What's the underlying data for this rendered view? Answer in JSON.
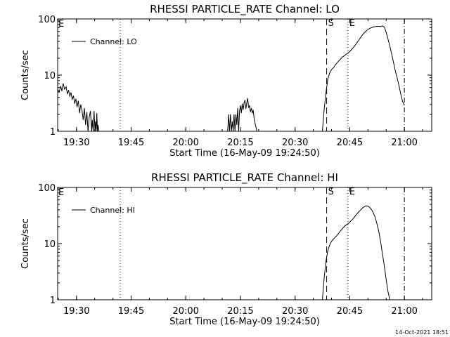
{
  "chart_data": [
    {
      "type": "line",
      "title": "RHESSI PARTICLE_RATE Channel: LO",
      "xlabel": "Start Time (16-May-09 19:24:50)",
      "ylabel": "Counts/sec",
      "yscale": "log",
      "ylim": [
        1,
        100
      ],
      "xlim": [
        "19:24:50",
        "21:07:30"
      ],
      "x_ticks": [
        "19:30",
        "19:45",
        "20:00",
        "20:15",
        "20:30",
        "20:45",
        "21:00"
      ],
      "y_ticks": [
        "1",
        "10",
        "100"
      ],
      "grid": false,
      "legend": {
        "placement": "top-left",
        "entries": [
          "Channel: LO"
        ]
      },
      "markers": [
        {
          "label": "",
          "time": "19:42:00",
          "style": "dotted"
        },
        {
          "label": "S",
          "time": "20:38:40",
          "style": "dashed"
        },
        {
          "label": "E",
          "time": "20:44:30",
          "style": "dotted"
        },
        {
          "label": "",
          "time": "21:00:00",
          "style": "dashdot"
        }
      ],
      "corner_label": "E",
      "series": [
        {
          "name": "Channel: LO",
          "segments": [
            {
              "x": [
                "19:24:50",
                "19:25:15",
                "19:25:40",
                "19:26:00",
                "19:26:20",
                "19:26:45",
                "19:27:10",
                "19:27:30",
                "19:27:50",
                "19:28:10",
                "19:28:30",
                "19:28:50",
                "19:29:10",
                "19:29:30",
                "19:29:50",
                "19:30:10",
                "19:30:30",
                "19:30:50",
                "19:31:10",
                "19:31:30",
                "19:31:50",
                "19:32:10",
                "19:32:30",
                "19:32:50",
                "19:33:10",
                "19:33:30",
                "19:33:50",
                "19:34:10",
                "19:34:20",
                "19:34:35",
                "19:34:50",
                "19:35:05",
                "19:35:15",
                "19:35:25",
                "19:35:35",
                "19:35:45",
                "19:35:55",
                "19:36:10",
                "19:36:20"
              ],
              "y": [
                5.6,
                5.0,
                6.4,
                5.2,
                7.1,
                5.6,
                6.2,
                4.6,
                5.4,
                4.2,
                4.9,
                3.7,
                4.3,
                3.1,
                3.8,
                2.7,
                3.5,
                2.1,
                3.0,
                2.4,
                1.6,
                2.6,
                1.3,
                2.2,
                1.0,
                1.8,
                2.3,
                1.0,
                1.6,
                1.0,
                2.3,
                1.0,
                1.5,
                1.0,
                2.1,
                1.0,
                1.3,
                1.0,
                1.0
              ]
            },
            {
              "x": [
                "20:11:30",
                "20:11:45",
                "20:12:00",
                "20:12:15",
                "20:12:30",
                "20:12:45",
                "20:13:00",
                "20:13:15",
                "20:13:30",
                "20:13:45",
                "20:14:00",
                "20:14:15",
                "20:14:30",
                "20:14:45",
                "20:15:00",
                "20:15:15",
                "20:15:30",
                "20:15:45",
                "20:16:00",
                "20:16:15",
                "20:16:30",
                "20:16:45",
                "20:17:00",
                "20:17:15",
                "20:17:30",
                "20:17:45",
                "20:18:00",
                "20:18:15",
                "20:18:30",
                "20:18:45",
                "20:19:00",
                "20:19:15",
                "20:19:30"
              ],
              "y": [
                1.0,
                2.0,
                1.0,
                2.0,
                1.0,
                1.5,
                1.0,
                2.0,
                1.0,
                2.0,
                1.3,
                2.6,
                1.0,
                2.3,
                2.9,
                2.1,
                3.1,
                2.4,
                3.2,
                3.6,
                2.5,
                3.2,
                3.9,
                2.6,
                2.9,
                2.2,
                2.6,
                2.1,
                2.4,
                1.7,
                1.4,
                1.2,
                1.0
              ]
            },
            {
              "x": [
                "20:37:30",
                "20:38:00",
                "20:38:30",
                "20:39:00",
                "20:39:30",
                "20:40:00",
                "20:40:30",
                "20:41:00",
                "20:41:30",
                "20:42:00",
                "20:42:30",
                "20:43:00",
                "20:43:30",
                "20:44:00",
                "20:44:30",
                "20:45:00",
                "20:45:30",
                "20:46:00",
                "20:46:30",
                "20:47:00",
                "20:47:30",
                "20:48:00",
                "20:48:30",
                "20:49:00",
                "20:49:30",
                "20:50:00",
                "20:50:30",
                "20:51:00",
                "20:51:30",
                "20:52:00",
                "20:52:30",
                "20:53:00",
                "20:53:30",
                "20:54:00",
                "20:54:30",
                "20:55:00",
                "20:55:30",
                "20:56:00",
                "20:56:30",
                "20:57:00",
                "20:57:30",
                "20:58:00",
                "20:58:30",
                "20:59:00",
                "20:59:30",
                "21:00:00"
              ],
              "y": [
                1.0,
                2.5,
                5.0,
                8.5,
                11,
                12.5,
                13.5,
                15,
                16.5,
                18,
                19.5,
                21,
                22,
                23.5,
                24.5,
                26.5,
                28.5,
                31,
                34,
                38,
                42,
                47,
                52,
                57,
                61,
                65,
                68,
                70,
                72,
                73,
                74,
                74,
                73,
                75,
                72,
                58,
                44,
                33,
                24,
                17,
                12,
                9,
                6.5,
                4.6,
                3.4,
                2.9
              ]
            }
          ]
        }
      ]
    },
    {
      "type": "line",
      "title": "RHESSI PARTICLE_RATE Channel: HI",
      "xlabel": "Start Time (16-May-09 19:24:50)",
      "ylabel": "Counts/sec",
      "yscale": "log",
      "ylim": [
        1,
        100
      ],
      "xlim": [
        "19:24:50",
        "21:07:30"
      ],
      "x_ticks": [
        "19:30",
        "19:45",
        "20:00",
        "20:15",
        "20:30",
        "20:45",
        "21:00"
      ],
      "y_ticks": [
        "1",
        "10",
        "100"
      ],
      "grid": false,
      "legend": {
        "placement": "top-left",
        "entries": [
          "Channel: HI"
        ]
      },
      "markers": [
        {
          "label": "",
          "time": "19:42:00",
          "style": "dotted"
        },
        {
          "label": "S",
          "time": "20:38:40",
          "style": "dashed"
        },
        {
          "label": "E",
          "time": "20:44:30",
          "style": "dotted"
        },
        {
          "label": "",
          "time": "21:00:00",
          "style": "dashdot"
        }
      ],
      "corner_label": "E",
      "series": [
        {
          "name": "Channel: HI",
          "segments": [
            {
              "x": [
                "20:37:30",
                "20:38:00",
                "20:38:30",
                "20:39:00",
                "20:39:30",
                "20:40:00",
                "20:40:30",
                "20:41:00",
                "20:41:30",
                "20:42:00",
                "20:42:30",
                "20:43:00",
                "20:43:30",
                "20:44:00",
                "20:44:30",
                "20:45:00",
                "20:45:30",
                "20:46:00",
                "20:46:30",
                "20:47:00",
                "20:47:30",
                "20:48:00",
                "20:48:30",
                "20:49:00",
                "20:49:30",
                "20:50:00",
                "20:50:30",
                "20:51:00",
                "20:51:30",
                "20:52:00",
                "20:52:30",
                "20:53:00",
                "20:53:30",
                "20:54:00",
                "20:54:30",
                "20:55:00",
                "20:55:30",
                "20:56:00"
              ],
              "y": [
                1.0,
                2.5,
                5.0,
                7.5,
                9.5,
                11,
                12,
                13,
                14,
                15.5,
                17,
                18.5,
                20,
                21.5,
                22.5,
                24,
                26,
                28,
                31,
                34,
                37,
                40,
                43,
                45.5,
                47,
                46.5,
                44,
                40,
                35,
                29,
                22,
                16,
                10.5,
                6.5,
                4.0,
                2.3,
                1.4,
                1.0
              ]
            }
          ]
        }
      ]
    }
  ],
  "footer": {
    "timestamp": "14-Oct-2021 18:51"
  }
}
